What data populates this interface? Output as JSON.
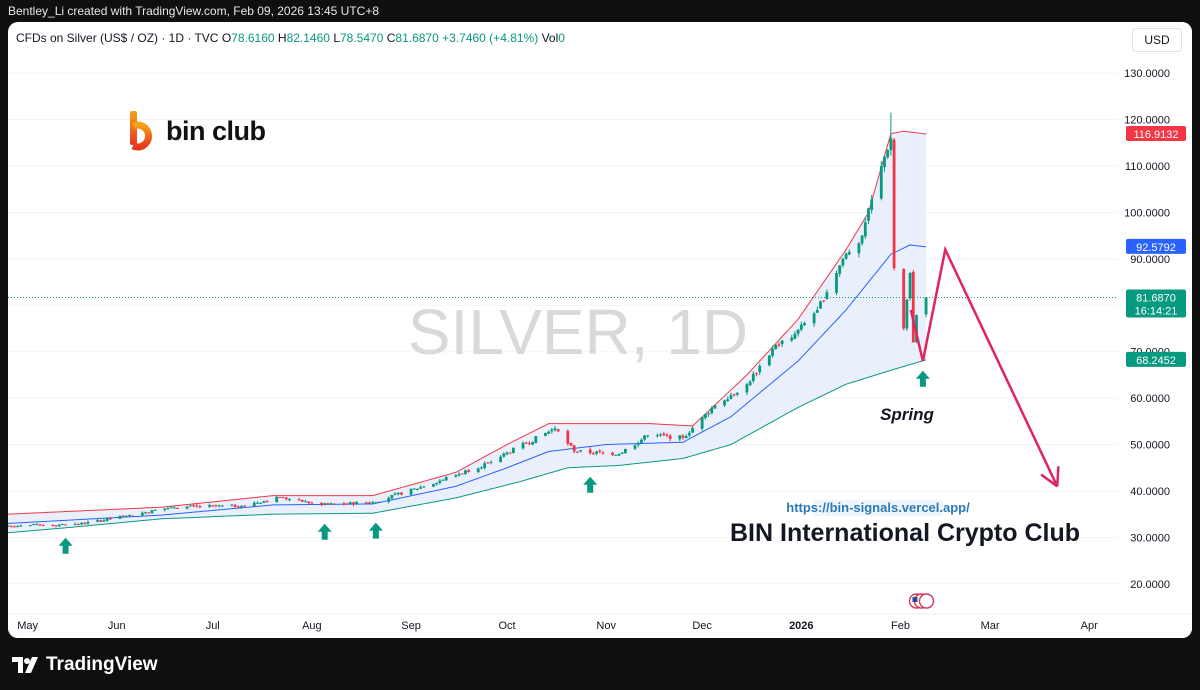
{
  "attribution": "Bentley_Li created with TradingView.com, Feb 09, 2026 13:45 UTC+8",
  "header": {
    "symbol": "CFDs on Silver (US$ / OZ) · 1D · TVC",
    "o_label": "O",
    "o_value": "78.6160",
    "h_label": "H",
    "h_value": "82.1460",
    "l_label": "L",
    "l_value": "78.5470",
    "c_label": "C",
    "c_value": "81.6870",
    "change": "+3.7460 (+4.81%)",
    "vol_label": "Vol",
    "vol_value": "0"
  },
  "currency": "USD",
  "brand": {
    "name": "bin club"
  },
  "watermark": "SILVER, 1D",
  "annotation": {
    "spring": "Spring"
  },
  "promo": {
    "url": "https://bin-signals.vercel.app/",
    "title": "BIN International Crypto Club"
  },
  "footer": {
    "logo_text": "TradingView"
  },
  "colors": {
    "up": "#089981",
    "down": "#f23645",
    "upper_band": "#f23645",
    "middle_band": "#2962ff",
    "lower_band": "#089981",
    "band_fill": "#eaf0fb",
    "arrow": "#e0245e",
    "marker": "#089981"
  },
  "icons": [
    "tradingview-logo-icon",
    "bin-club-logo-icon",
    "us-flag-events-icon",
    "up-arrow-marker-icon"
  ],
  "chart_data": {
    "type": "candlestick",
    "title": "SILVER, 1D",
    "x_ticks": [
      "May",
      "Jun",
      "Jul",
      "Aug",
      "Sep",
      "Oct",
      "Nov",
      "Dec",
      "2026",
      "Feb",
      "Mar",
      "Apr"
    ],
    "y_ticks": [
      "20.0000",
      "30.0000",
      "40.0000",
      "50.0000",
      "60.0000",
      "70.0000",
      "80.0000",
      "90.0000",
      "100.0000",
      "110.0000",
      "120.0000",
      "130.0000"
    ],
    "ylim": [
      15,
      135
    ],
    "price_labels": [
      {
        "value": 116.9132,
        "text": "116.9132",
        "color": "#f23645"
      },
      {
        "value": 92.5792,
        "text": "92.5792",
        "color": "#2962ff"
      },
      {
        "value": 81.687,
        "text": "81.6870",
        "sub": "16:14:21",
        "color": "#089981"
      },
      {
        "value": 68.2452,
        "text": "68.2452",
        "color": "#089981"
      }
    ],
    "last_price": 81.687,
    "anchors": [
      {
        "date": "2025-04-28",
        "close": 32.5
      },
      {
        "date": "2025-05-20",
        "close": 32.8
      },
      {
        "date": "2025-06-04",
        "close": 34.6
      },
      {
        "date": "2025-06-18",
        "close": 36.5
      },
      {
        "date": "2025-07-10",
        "close": 36.8
      },
      {
        "date": "2025-07-22",
        "close": 38.6
      },
      {
        "date": "2025-08-04",
        "close": 37.0
      },
      {
        "date": "2025-08-20",
        "close": 37.6
      },
      {
        "date": "2025-09-05",
        "close": 41.0
      },
      {
        "date": "2025-09-25",
        "close": 46.0
      },
      {
        "date": "2025-10-16",
        "close": 53.5
      },
      {
        "date": "2025-10-22",
        "close": 48.5
      },
      {
        "date": "2025-11-05",
        "close": 48.0
      },
      {
        "date": "2025-11-14",
        "close": 52.0
      },
      {
        "date": "2025-11-25",
        "close": 51.5
      },
      {
        "date": "2025-12-05",
        "close": 58.5
      },
      {
        "date": "2025-12-15",
        "close": 63.0
      },
      {
        "date": "2025-12-24",
        "close": 71.5
      },
      {
        "date": "2025-12-29",
        "close": 73.0
      },
      {
        "date": "2026-01-06",
        "close": 79.0
      },
      {
        "date": "2026-01-14",
        "close": 90.0
      },
      {
        "date": "2026-01-20",
        "close": 95.0
      },
      {
        "date": "2026-01-26",
        "close": 110.0
      },
      {
        "date": "2026-01-29",
        "close": 116.0
      },
      {
        "date": "2026-01-30",
        "close": 88.0
      },
      {
        "date": "2026-02-02",
        "close": 75.0
      },
      {
        "date": "2026-02-04",
        "close": 87.0
      },
      {
        "date": "2026-02-05",
        "close": 72.0
      },
      {
        "date": "2026-02-06",
        "close": 77.9
      },
      {
        "date": "2026-02-09",
        "close": 81.687
      }
    ],
    "spike_highs": [
      {
        "date": "2026-01-29",
        "high": 121.5
      }
    ],
    "bollinger": {
      "upper": [
        [
          "2025-04-28",
          35.0
        ],
        [
          "2025-06-15",
          36.5
        ],
        [
          "2025-07-20",
          39.0
        ],
        [
          "2025-08-20",
          39.0
        ],
        [
          "2025-09-15",
          44.0
        ],
        [
          "2025-10-01",
          50.0
        ],
        [
          "2025-10-14",
          54.5
        ],
        [
          "2025-11-15",
          54.5
        ],
        [
          "2025-11-28",
          54.0
        ],
        [
          "2025-12-15",
          65.0
        ],
        [
          "2025-12-31",
          77.0
        ],
        [
          "2026-01-15",
          92.0
        ],
        [
          "2026-01-22",
          100.0
        ],
        [
          "2026-01-29",
          117.0
        ],
        [
          "2026-02-02",
          117.5
        ],
        [
          "2026-02-09",
          116.91
        ]
      ],
      "middle": [
        [
          "2025-04-28",
          33.0
        ],
        [
          "2025-06-15",
          34.8
        ],
        [
          "2025-07-20",
          37.0
        ],
        [
          "2025-08-20",
          37.2
        ],
        [
          "2025-09-15",
          41.0
        ],
        [
          "2025-10-01",
          45.0
        ],
        [
          "2025-10-14",
          48.5
        ],
        [
          "2025-11-01",
          50.0
        ],
        [
          "2025-11-25",
          50.5
        ],
        [
          "2025-12-10",
          56.0
        ],
        [
          "2025-12-31",
          68.0
        ],
        [
          "2026-01-15",
          79.0
        ],
        [
          "2026-01-29",
          91.0
        ],
        [
          "2026-02-04",
          93.0
        ],
        [
          "2026-02-09",
          92.58
        ]
      ],
      "lower": [
        [
          "2025-04-28",
          31.0
        ],
        [
          "2025-05-15",
          32.0
        ],
        [
          "2025-06-15",
          34.0
        ],
        [
          "2025-07-20",
          35.0
        ],
        [
          "2025-08-20",
          35.2
        ],
        [
          "2025-09-15",
          38.5
        ],
        [
          "2025-10-05",
          42.0
        ],
        [
          "2025-10-20",
          45.0
        ],
        [
          "2025-11-05",
          45.5
        ],
        [
          "2025-11-25",
          47.0
        ],
        [
          "2025-12-10",
          50.0
        ],
        [
          "2025-12-31",
          58.0
        ],
        [
          "2026-01-15",
          63.0
        ],
        [
          "2026-01-29",
          66.0
        ],
        [
          "2026-02-09",
          68.25
        ]
      ]
    },
    "spring_markers": [
      "2025-05-16",
      "2025-08-05",
      "2025-08-21",
      "2025-10-27",
      "2026-02-08"
    ],
    "projection": [
      [
        "2026-02-08",
        68.0
      ],
      [
        "2026-02-15",
        92.0
      ],
      [
        "2026-03-22",
        41.0
      ]
    ]
  }
}
